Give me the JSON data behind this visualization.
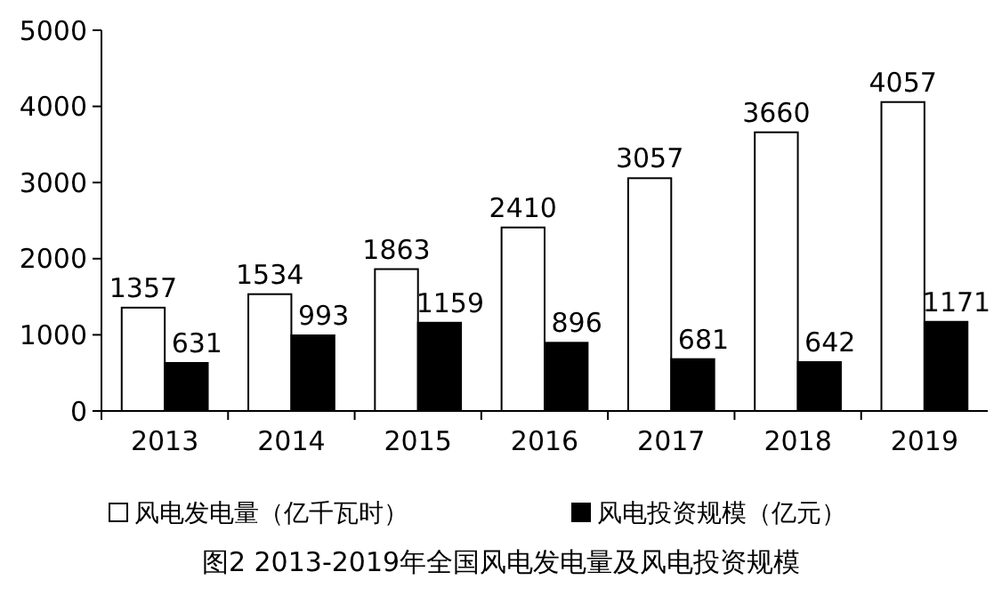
{
  "chart_data": {
    "type": "bar",
    "title": "图2 2013-2019年全国风电发电量及风电投资规模",
    "categories": [
      "2013",
      "2014",
      "2015",
      "2016",
      "2017",
      "2018",
      "2019"
    ],
    "series": [
      {
        "name": "风电发电量（亿千瓦时）",
        "color": "#ffffff",
        "values": [
          1357,
          1534,
          1863,
          2410,
          3057,
          3660,
          4057
        ]
      },
      {
        "name": "风电投资规模（亿元）",
        "color": "#000000",
        "values": [
          631,
          993,
          1159,
          896,
          681,
          642,
          1171
        ]
      }
    ],
    "ylim": [
      0,
      5000
    ],
    "yticks": [
      0,
      1000,
      2000,
      3000,
      4000,
      5000
    ],
    "data_labels": true,
    "legend": "bottom"
  }
}
